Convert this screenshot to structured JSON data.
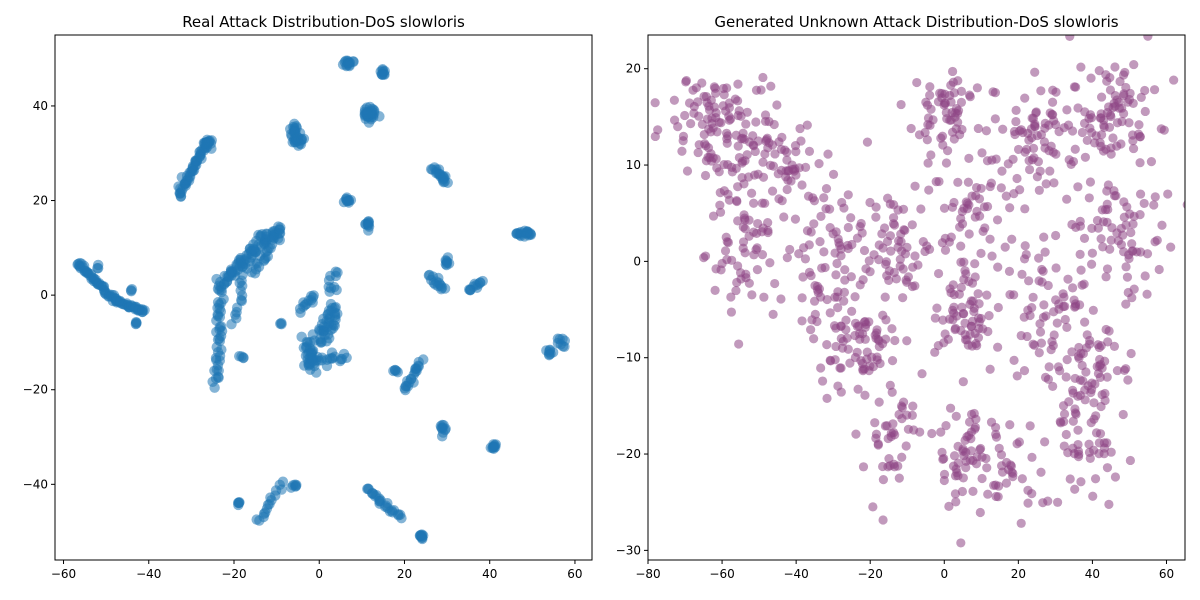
{
  "chart_data": [
    {
      "type": "scatter",
      "title": "Real Attack Distribution-DoS slowloris",
      "xlabel": "",
      "ylabel": "",
      "xlim": [
        -62,
        64
      ],
      "ylim": [
        -56,
        55
      ],
      "xticks": [
        -60,
        -40,
        -20,
        0,
        20,
        40,
        60
      ],
      "yticks": [
        -40,
        -20,
        0,
        20,
        40
      ],
      "grid": false,
      "legend": "none",
      "color": "#1f77b4",
      "series": [
        {
          "clusters": [
            {
              "kind": "line",
              "from": [
                -57,
                7
              ],
              "to": [
                -48,
                -1
              ],
              "n": 45,
              "spread": 0.5
            },
            {
              "kind": "line",
              "from": [
                -48,
                -1
              ],
              "to": [
                -41,
                -3.5
              ],
              "n": 35,
              "spread": 0.4
            },
            {
              "kind": "line",
              "from": [
                -33,
                21
              ],
              "to": [
                -26,
                33
              ],
              "n": 55,
              "spread": 0.6
            },
            {
              "kind": "blob",
              "at": [
                -26,
                32
              ],
              "n": 10,
              "rx": 1.5,
              "ry": 1
            },
            {
              "kind": "line",
              "from": [
                -24,
                -19
              ],
              "to": [
                -23,
                2
              ],
              "n": 40,
              "spread": 0.8
            },
            {
              "kind": "line",
              "from": [
                -23,
                2
              ],
              "to": [
                -13,
                12
              ],
              "n": 60,
              "spread": 1.2
            },
            {
              "kind": "line",
              "from": [
                -13,
                12
              ],
              "to": [
                -9,
                14
              ],
              "n": 20,
              "spread": 0.8
            },
            {
              "kind": "line",
              "from": [
                -20,
                -6
              ],
              "to": [
                -17,
                6
              ],
              "n": 15,
              "spread": 0.8
            },
            {
              "kind": "line",
              "from": [
                -15,
                5
              ],
              "to": [
                -10,
                12
              ],
              "n": 20,
              "spread": 0.8
            },
            {
              "kind": "blob",
              "at": [
                -6,
                35
              ],
              "n": 12,
              "rx": 1,
              "ry": 1
            },
            {
              "kind": "blob",
              "at": [
                -5,
                33
              ],
              "n": 20,
              "rx": 1.5,
              "ry": 1.5
            },
            {
              "kind": "line",
              "from": [
                -4,
                -3
              ],
              "to": [
                -1,
                0
              ],
              "n": 12,
              "spread": 0.6
            },
            {
              "kind": "line",
              "from": [
                -3,
                -9
              ],
              "to": [
                -2,
                -16
              ],
              "n": 30,
              "spread": 1.2
            },
            {
              "kind": "line",
              "from": [
                -2,
                -14
              ],
              "to": [
                6,
                -13
              ],
              "n": 20,
              "spread": 0.8
            },
            {
              "kind": "line",
              "from": [
                0,
                -10
              ],
              "to": [
                3,
                -2
              ],
              "n": 25,
              "spread": 1.2
            },
            {
              "kind": "line",
              "from": [
                2,
                -9
              ],
              "to": [
                4,
                -4
              ],
              "n": 15,
              "spread": 0.8
            },
            {
              "kind": "blob",
              "at": [
                3,
                3
              ],
              "n": 10,
              "rx": 1,
              "ry": 1.5
            },
            {
              "kind": "blob",
              "at": [
                7,
                49
              ],
              "n": 15,
              "rx": 1,
              "ry": 0.6
            },
            {
              "kind": "blob",
              "at": [
                15,
                47
              ],
              "n": 10,
              "rx": 0.6,
              "ry": 0.6
            },
            {
              "kind": "blob",
              "at": [
                12,
                38
              ],
              "n": 30,
              "rx": 2,
              "ry": 1.5
            },
            {
              "kind": "blob",
              "at": [
                6.5,
                20
              ],
              "n": 10,
              "rx": 0.8,
              "ry": 0.8
            },
            {
              "kind": "blob",
              "at": [
                11.5,
                15
              ],
              "n": 10,
              "rx": 0.8,
              "ry": 0.8
            },
            {
              "kind": "line",
              "from": [
                27,
                27
              ],
              "to": [
                30,
                24
              ],
              "n": 20,
              "spread": 0.6
            },
            {
              "kind": "line",
              "from": [
                26,
                4
              ],
              "to": [
                29,
                1
              ],
              "n": 15,
              "spread": 0.6
            },
            {
              "kind": "blob",
              "at": [
                30,
                7
              ],
              "n": 8,
              "rx": 0.4,
              "ry": 0.8
            },
            {
              "kind": "line",
              "from": [
                35,
                1
              ],
              "to": [
                38,
                3
              ],
              "n": 12,
              "spread": 0.5
            },
            {
              "kind": "blob",
              "at": [
                48,
                13
              ],
              "n": 20,
              "rx": 1.8,
              "ry": 0.5
            },
            {
              "kind": "line",
              "from": [
                20,
                -20
              ],
              "to": [
                24,
                -14
              ],
              "n": 20,
              "spread": 0.6
            },
            {
              "kind": "blob",
              "at": [
                18,
                -16
              ],
              "n": 5,
              "rx": 0.5,
              "ry": 0.5
            },
            {
              "kind": "blob",
              "at": [
                29,
                -28
              ],
              "n": 10,
              "rx": 0.5,
              "ry": 0.8
            },
            {
              "kind": "blob",
              "at": [
                41,
                -32
              ],
              "n": 10,
              "rx": 0.5,
              "ry": 0.5
            },
            {
              "kind": "blob",
              "at": [
                54,
                -12
              ],
              "n": 8,
              "rx": 0.5,
              "ry": 0.8
            },
            {
              "kind": "blob",
              "at": [
                57,
                -10
              ],
              "n": 8,
              "rx": 0.8,
              "ry": 0.8
            },
            {
              "kind": "line",
              "from": [
                -14,
                -48
              ],
              "to": [
                -9,
                -40
              ],
              "n": 15,
              "spread": 0.6
            },
            {
              "kind": "blob",
              "at": [
                -6,
                -40.5
              ],
              "n": 6,
              "rx": 0.5,
              "ry": 0.4
            },
            {
              "kind": "blob",
              "at": [
                -19,
                -44
              ],
              "n": 5,
              "rx": 0.4,
              "ry": 0.5
            },
            {
              "kind": "line",
              "from": [
                11,
                -41
              ],
              "to": [
                19,
                -47
              ],
              "n": 25,
              "spread": 0.6
            },
            {
              "kind": "blob",
              "at": [
                24,
                -51
              ],
              "n": 10,
              "rx": 0.6,
              "ry": 0.6
            },
            {
              "kind": "blob",
              "at": [
                -43,
                -6
              ],
              "n": 4,
              "rx": 0.3,
              "ry": 0.3
            },
            {
              "kind": "blob",
              "at": [
                -44,
                1
              ],
              "n": 3,
              "rx": 0.3,
              "ry": 0.3
            },
            {
              "kind": "blob",
              "at": [
                -52,
                6
              ],
              "n": 3,
              "rx": 0.3,
              "ry": 0.3
            },
            {
              "kind": "blob",
              "at": [
                -9,
                -6
              ],
              "n": 3,
              "rx": 0.3,
              "ry": 0.3
            },
            {
              "kind": "blob",
              "at": [
                -18,
                -13
              ],
              "n": 4,
              "rx": 1,
              "ry": 0.3
            }
          ]
        }
      ]
    },
    {
      "type": "scatter",
      "title": "Generated Unknown Attack Distribution-DoS slowloris",
      "xlabel": "",
      "ylabel": "",
      "xlim": [
        -80,
        65
      ],
      "ylim": [
        -31,
        23.5
      ],
      "xticks": [
        -80,
        -60,
        -40,
        -20,
        0,
        20,
        40,
        60
      ],
      "yticks": [
        -30,
        -20,
        -10,
        0,
        10,
        20
      ],
      "grid": false,
      "legend": "none",
      "color": "#8e4585",
      "series": [
        {
          "clusters": [
            {
              "kind": "blob",
              "at": [
                -60,
                14
              ],
              "n": 120,
              "rx": 12,
              "ry": 5
            },
            {
              "kind": "blob",
              "at": [
                -45,
                9
              ],
              "n": 60,
              "rx": 10,
              "ry": 4
            },
            {
              "kind": "blob",
              "at": [
                -55,
                1
              ],
              "n": 60,
              "rx": 8,
              "ry": 6
            },
            {
              "kind": "blob",
              "at": [
                -30,
                0
              ],
              "n": 70,
              "rx": 12,
              "ry": 6
            },
            {
              "kind": "blob",
              "at": [
                -25,
                -8
              ],
              "n": 80,
              "rx": 11,
              "ry": 5
            },
            {
              "kind": "blob",
              "at": [
                -15,
                -17
              ],
              "n": 45,
              "rx": 6,
              "ry": 6
            },
            {
              "kind": "blob",
              "at": [
                -12,
                2
              ],
              "n": 50,
              "rx": 8,
              "ry": 6
            },
            {
              "kind": "blob",
              "at": [
                0,
                15
              ],
              "n": 60,
              "rx": 9,
              "ry": 4
            },
            {
              "kind": "blob",
              "at": [
                8,
                5
              ],
              "n": 60,
              "rx": 10,
              "ry": 6
            },
            {
              "kind": "blob",
              "at": [
                5,
                -6
              ],
              "n": 60,
              "rx": 9,
              "ry": 4
            },
            {
              "kind": "blob",
              "at": [
                5,
                -20
              ],
              "n": 60,
              "rx": 8,
              "ry": 5
            },
            {
              "kind": "blob",
              "at": [
                18,
                -22
              ],
              "n": 30,
              "rx": 6,
              "ry": 5
            },
            {
              "kind": "blob",
              "at": [
                25,
                13
              ],
              "n": 70,
              "rx": 9,
              "ry": 5
            },
            {
              "kind": "blob",
              "at": [
                30,
                -5
              ],
              "n": 80,
              "rx": 12,
              "ry": 7
            },
            {
              "kind": "blob",
              "at": [
                45,
                15
              ],
              "n": 90,
              "rx": 11,
              "ry": 5
            },
            {
              "kind": "blob",
              "at": [
                48,
                3
              ],
              "n": 70,
              "rx": 10,
              "ry": 5
            },
            {
              "kind": "blob",
              "at": [
                40,
                -12
              ],
              "n": 60,
              "rx": 9,
              "ry": 5
            },
            {
              "kind": "blob",
              "at": [
                38,
                -20
              ],
              "n": 40,
              "rx": 7,
              "ry": 4
            }
          ]
        }
      ]
    }
  ]
}
